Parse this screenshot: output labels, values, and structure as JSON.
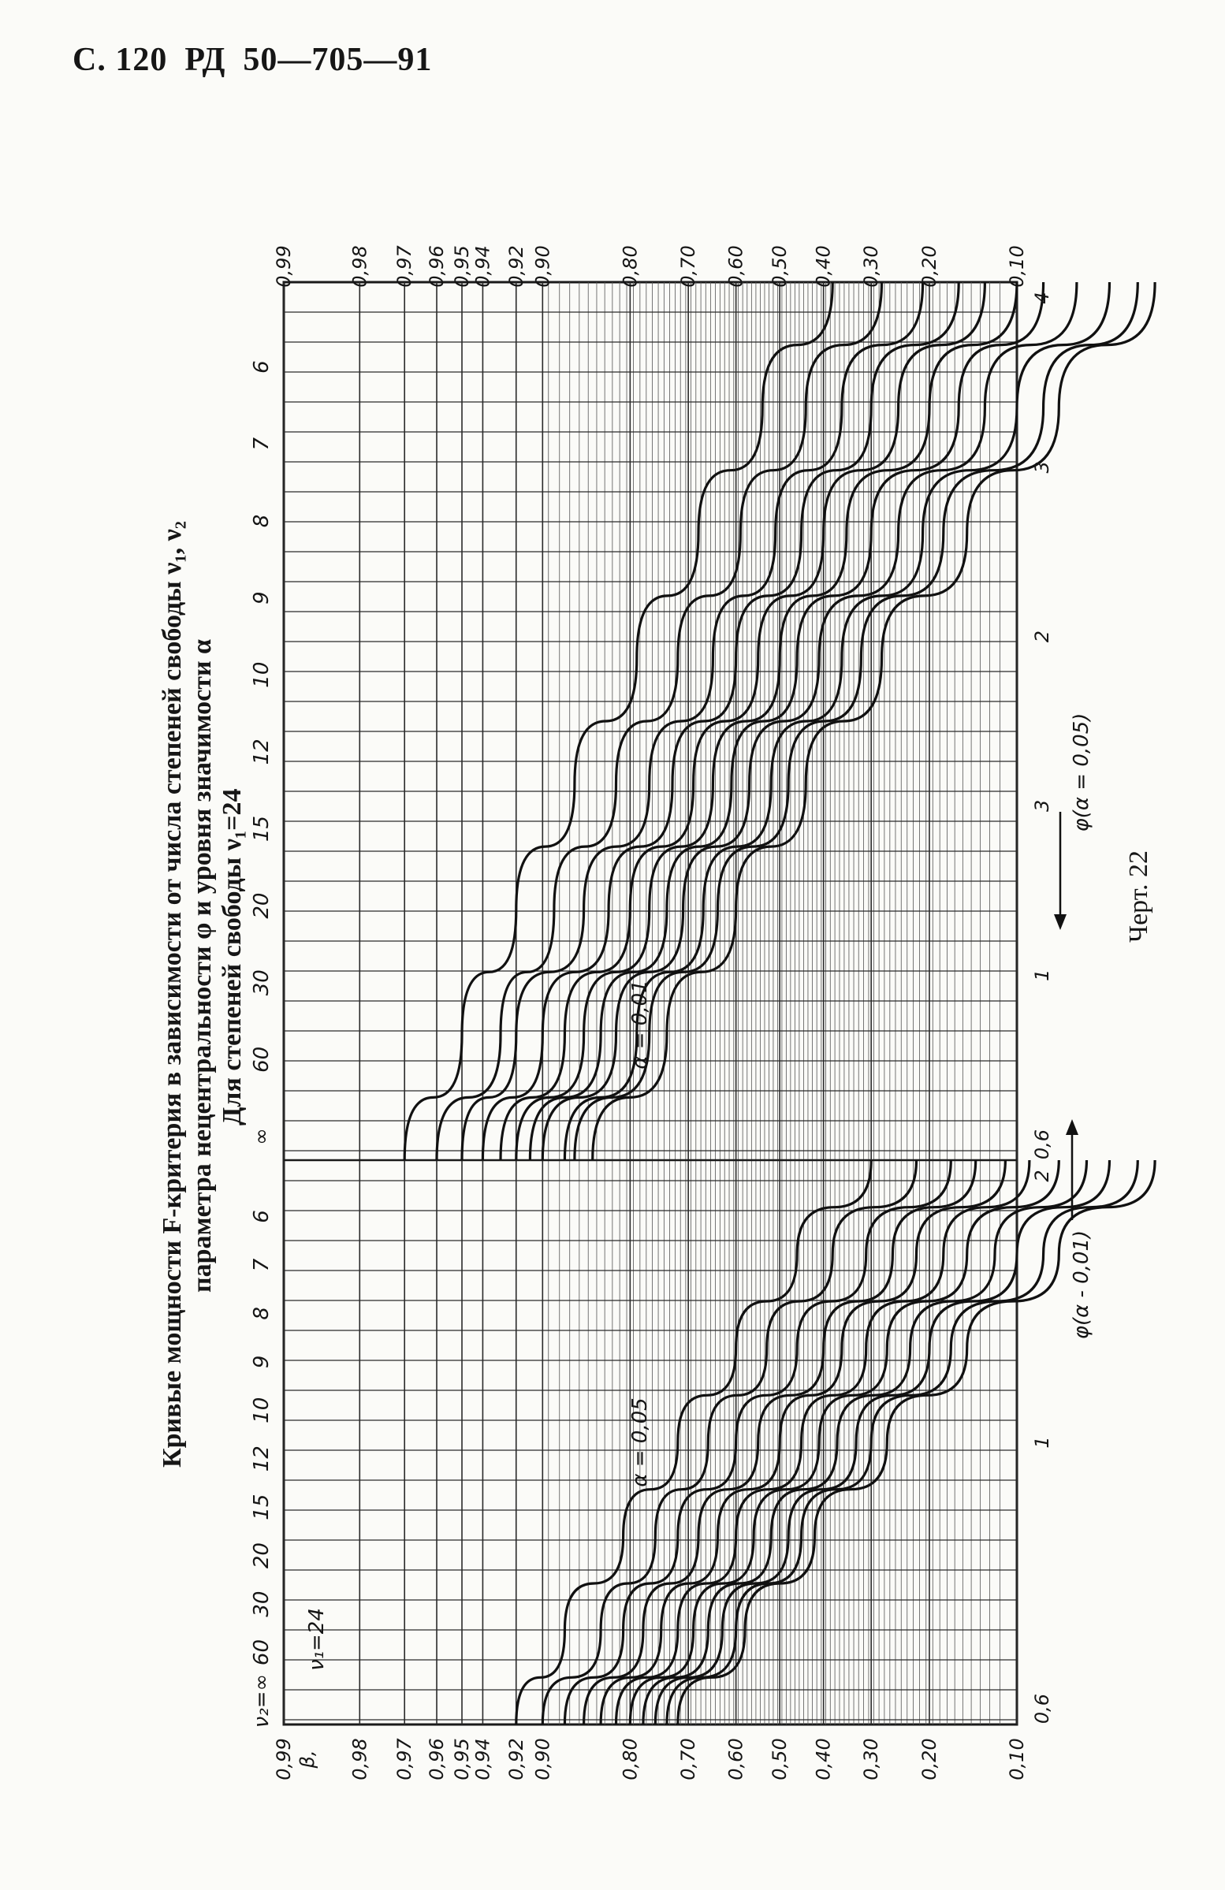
{
  "header": {
    "page": "С. 120",
    "doc_code": "РД",
    "doc_number": "50—705—91"
  },
  "caption": {
    "line1": "Кривые мощности F-критерия в зависимости от числа степеней свободы ν₁, ν₂",
    "line2": "параметра нецентральности φ и уровня значимости α",
    "line3": "Для степеней свободы ν₁=24"
  },
  "figure_caption": "Черт. 22",
  "chart_data": {
    "type": "line",
    "title": "Кривые мощности F-критерия в зависимости от числа степеней свободы ν₁, ν₂ параметра нецентральности φ и уровня значимости α",
    "subtitle": "Для степеней свободы ν₁=24",
    "orientation": "rotated 90° counter-clockwise on the page",
    "grid": true,
    "x_axis_scale": "nonlinear (probability)",
    "beta_tick_labels": [
      "0,99",
      "0,98",
      "0,97",
      "0,96",
      "0,95",
      "0,94",
      "0,92",
      "0,90",
      "0,80",
      "0,70",
      "0,60",
      "0,50",
      "0,40",
      "0,30",
      "0,20",
      "0,10"
    ],
    "beta_axis_symbol": "β,",
    "panels": [
      {
        "alpha_label": "α = 0,05",
        "phi_axis_label": "φ(α - 0,01)",
        "phi_tick_labels": [
          "0,6",
          "1",
          "2"
        ],
        "v1_label": "ν₁=24",
        "v2_prefix": "ν₂=∞",
        "v2_labels": [
          "60",
          "30",
          "20",
          "15",
          "12",
          "10",
          "9",
          "8",
          "7",
          "6"
        ],
        "series": [
          {
            "name": "∞",
            "phi": [
              0.6,
              0.8,
              1.0,
              1.2,
              1.4,
              1.6,
              1.8
            ],
            "beta": [
              0.72,
              0.58,
              0.42,
              0.27,
              0.15,
              0.07,
              0.03
            ]
          },
          {
            "name": "60",
            "phi": [
              0.6,
              0.8,
              1.0,
              1.2,
              1.4,
              1.6,
              1.8
            ],
            "beta": [
              0.74,
              0.6,
              0.45,
              0.3,
              0.17,
              0.08,
              0.035
            ]
          },
          {
            "name": "30",
            "phi": [
              0.6,
              0.8,
              1.0,
              1.2,
              1.4,
              1.6,
              1.8
            ],
            "beta": [
              0.76,
              0.63,
              0.48,
              0.33,
              0.2,
              0.1,
              0.045
            ]
          },
          {
            "name": "20",
            "phi": [
              0.6,
              0.8,
              1.0,
              1.2,
              1.4,
              1.6,
              1.8
            ],
            "beta": [
              0.78,
              0.66,
              0.52,
              0.37,
              0.23,
              0.12,
              0.055
            ]
          },
          {
            "name": "15",
            "phi": [
              0.6,
              0.8,
              1.0,
              1.2,
              1.4,
              1.6,
              1.8
            ],
            "beta": [
              0.8,
              0.69,
              0.56,
              0.41,
              0.27,
              0.15,
              0.07
            ]
          },
          {
            "name": "12",
            "phi": [
              0.6,
              0.8,
              1.0,
              1.2,
              1.4,
              1.6,
              1.8
            ],
            "beta": [
              0.82,
              0.72,
              0.6,
              0.45,
              0.31,
              0.18,
              0.09
            ]
          },
          {
            "name": "10",
            "phi": [
              0.6,
              0.8,
              1.0,
              1.2,
              1.4,
              1.6,
              1.8
            ],
            "beta": [
              0.84,
              0.75,
              0.64,
              0.5,
              0.36,
              0.22,
              0.11
            ]
          },
          {
            "name": "9",
            "phi": [
              0.6,
              0.8,
              1.0,
              1.2,
              1.4,
              1.6,
              1.8
            ],
            "beta": [
              0.86,
              0.78,
              0.68,
              0.55,
              0.4,
              0.26,
              0.14
            ]
          },
          {
            "name": "8",
            "phi": [
              0.6,
              0.8,
              1.0,
              1.2,
              1.4,
              1.6,
              1.8
            ],
            "beta": [
              0.88,
              0.81,
              0.72,
              0.6,
              0.46,
              0.31,
              0.17
            ]
          },
          {
            "name": "7",
            "phi": [
              0.6,
              0.8,
              1.0,
              1.2,
              1.4,
              1.6,
              1.8
            ],
            "beta": [
              0.9,
              0.84,
              0.76,
              0.66,
              0.53,
              0.38,
              0.22
            ]
          },
          {
            "name": "6",
            "phi": [
              0.6,
              0.8,
              1.0,
              1.2,
              1.4,
              1.6,
              1.8
            ],
            "beta": [
              0.92,
              0.88,
              0.81,
              0.72,
              0.6,
              0.46,
              0.3
            ]
          }
        ]
      },
      {
        "alpha_label": "α = 0,01",
        "phi_axis_label": "φ(α = 0,05)",
        "phi_tick_labels": [
          "0,6",
          "1",
          "3",
          "2",
          "3",
          "4"
        ],
        "v2_prefix": "∞",
        "v2_labels": [
          "60",
          "30",
          "20",
          "15",
          "12",
          "10",
          "9",
          "8",
          "7",
          "6"
        ],
        "series": [
          {
            "name": "∞",
            "phi": [
              1.0,
              1.4,
              1.8,
              2.2,
              2.6,
              3.0,
              3.4,
              3.8
            ],
            "beta": [
              0.85,
              0.74,
              0.6,
              0.44,
              0.28,
              0.15,
              0.07,
              0.03
            ]
          },
          {
            "name": "60",
            "phi": [
              1.0,
              1.4,
              1.8,
              2.2,
              2.6,
              3.0,
              3.4,
              3.8
            ],
            "beta": [
              0.87,
              0.77,
              0.64,
              0.48,
              0.32,
              0.18,
              0.08,
              0.035
            ]
          },
          {
            "name": "30",
            "phi": [
              1.0,
              1.4,
              1.8,
              2.2,
              2.6,
              3.0,
              3.4,
              3.8
            ],
            "beta": [
              0.88,
              0.79,
              0.67,
              0.52,
              0.36,
              0.21,
              0.1,
              0.045
            ]
          },
          {
            "name": "20",
            "phi": [
              1.0,
              1.4,
              1.8,
              2.2,
              2.6,
              3.0,
              3.4,
              3.8
            ],
            "beta": [
              0.9,
              0.82,
              0.71,
              0.57,
              0.41,
              0.25,
              0.13,
              0.06
            ]
          },
          {
            "name": "15",
            "phi": [
              1.0,
              1.4,
              1.8,
              2.2,
              2.6,
              3.0,
              3.4,
              3.8
            ],
            "beta": [
              0.91,
              0.84,
              0.74,
              0.61,
              0.46,
              0.3,
              0.16,
              0.08
            ]
          },
          {
            "name": "12",
            "phi": [
              1.0,
              1.4,
              1.8,
              2.2,
              2.6,
              3.0,
              3.4,
              3.8
            ],
            "beta": [
              0.92,
              0.86,
              0.77,
              0.65,
              0.5,
              0.35,
              0.2,
              0.1
            ]
          },
          {
            "name": "10",
            "phi": [
              1.0,
              1.4,
              1.8,
              2.2,
              2.6,
              3.0,
              3.4,
              3.8
            ],
            "beta": [
              0.93,
              0.88,
              0.8,
              0.69,
              0.55,
              0.4,
              0.25,
              0.13
            ]
          },
          {
            "name": "9",
            "phi": [
              1.0,
              1.4,
              1.8,
              2.2,
              2.6,
              3.0,
              3.4,
              3.8
            ],
            "beta": [
              0.94,
              0.9,
              0.83,
              0.73,
              0.6,
              0.45,
              0.3,
              0.16
            ]
          },
          {
            "name": "8",
            "phi": [
              1.0,
              1.4,
              1.8,
              2.2,
              2.6,
              3.0,
              3.4,
              3.8
            ],
            "beta": [
              0.95,
              0.92,
              0.86,
              0.77,
              0.65,
              0.51,
              0.36,
              0.21
            ]
          },
          {
            "name": "7",
            "phi": [
              1.0,
              1.4,
              1.8,
              2.2,
              2.6,
              3.0,
              3.4,
              3.8
            ],
            "beta": [
              0.96,
              0.93,
              0.89,
              0.82,
              0.72,
              0.59,
              0.44,
              0.28
            ]
          },
          {
            "name": "6",
            "phi": [
              1.0,
              1.4,
              1.8,
              2.2,
              2.6,
              3.0,
              3.4,
              3.8
            ],
            "beta": [
              0.97,
              0.95,
              0.92,
              0.87,
              0.79,
              0.68,
              0.54,
              0.38
            ]
          }
        ]
      }
    ]
  }
}
